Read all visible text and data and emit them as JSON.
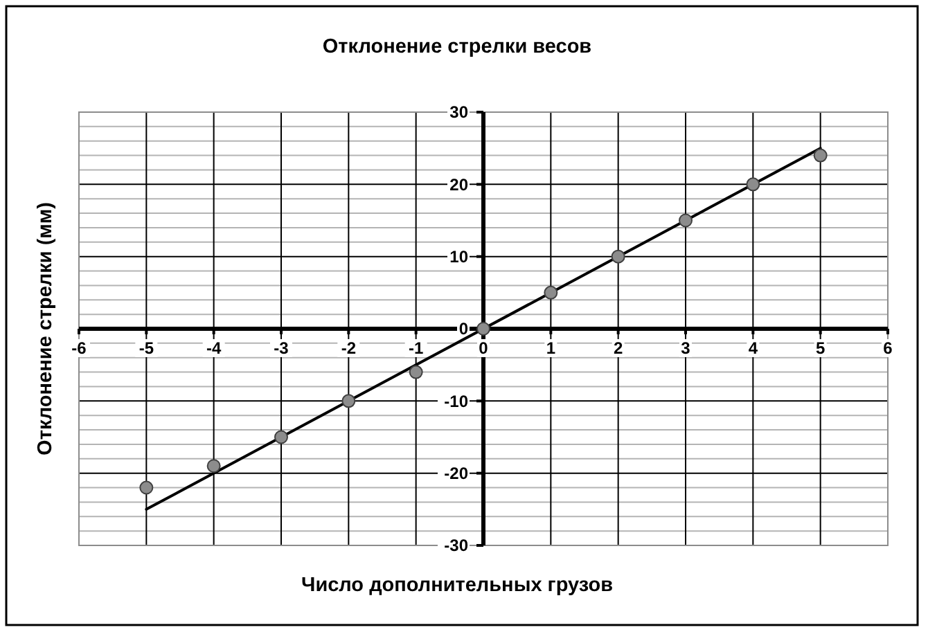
{
  "chart_data": {
    "type": "scatter",
    "title": "Отклонение стрелки весов",
    "xlabel": "Число дополнительных грузов",
    "ylabel": "Отклонение стрелки (мм)",
    "xlim": [
      -6,
      6
    ],
    "ylim": [
      -30,
      30
    ],
    "xticks": [
      -6,
      -5,
      -4,
      -3,
      -2,
      -1,
      0,
      1,
      2,
      3,
      4,
      5,
      6
    ],
    "yticks": [
      -30,
      -20,
      -10,
      0,
      10,
      20,
      30
    ],
    "grid": true,
    "marker": "circle",
    "series": [
      {
        "type": "scatter",
        "color": "#8c8c8c",
        "x": [
          -5,
          -4,
          -3,
          -2,
          -1,
          0,
          1,
          2,
          3,
          4,
          5
        ],
        "values": [
          -22,
          -19,
          -15,
          -10,
          -6,
          0,
          5,
          10,
          15,
          20,
          24
        ]
      },
      {
        "type": "line",
        "color": "#000000",
        "marker": "none",
        "x": [
          -5,
          5
        ],
        "values": [
          -25,
          25
        ]
      }
    ]
  }
}
